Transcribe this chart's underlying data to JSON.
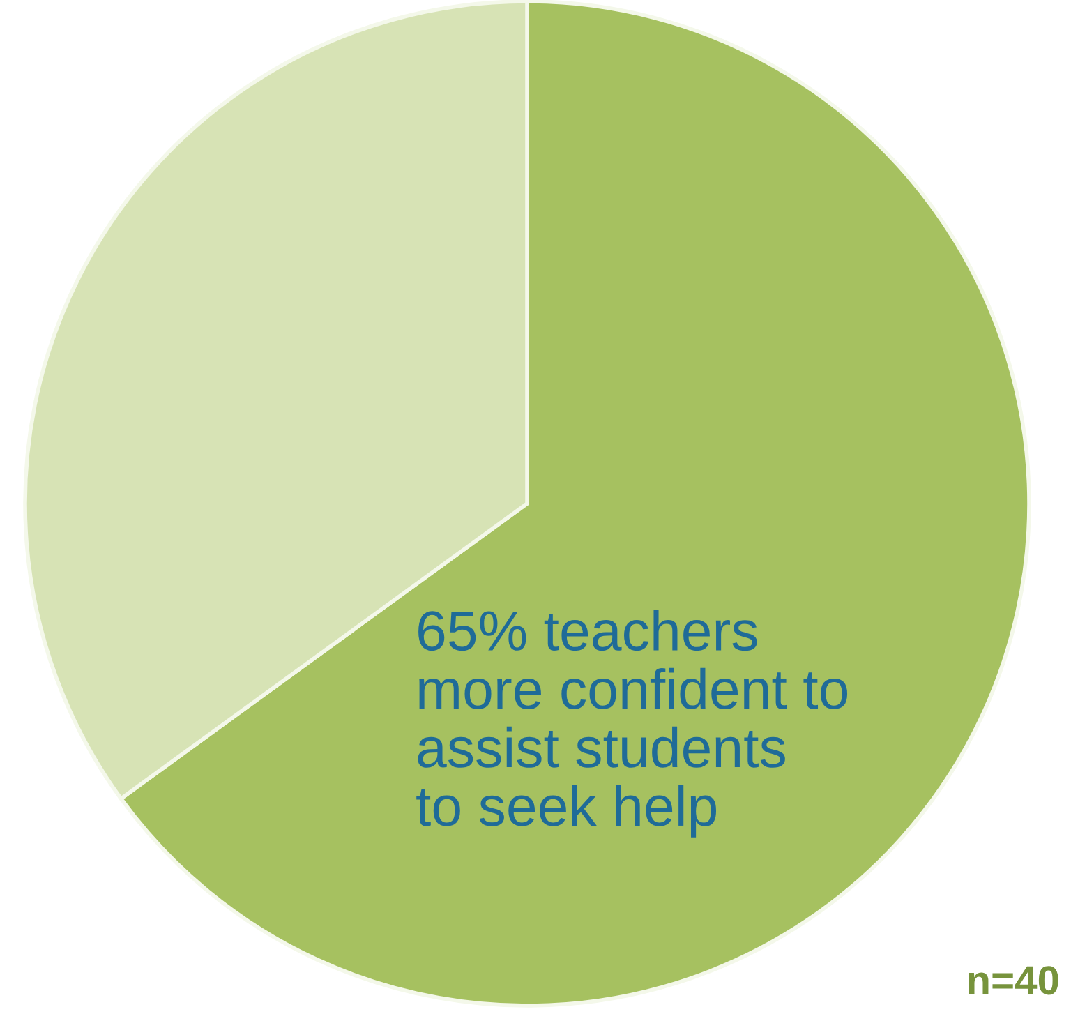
{
  "chart_data": {
    "type": "pie",
    "categories": [
      null,
      null
    ],
    "values": [
      65,
      35
    ],
    "colors": [
      "#a6c160",
      "#d7e3b5"
    ],
    "value_labels": [
      "65% teachers\nmore confident to\nassist students\nto seek help",
      null
    ],
    "annotations": [
      "n=40"
    ],
    "legend": false
  }
}
